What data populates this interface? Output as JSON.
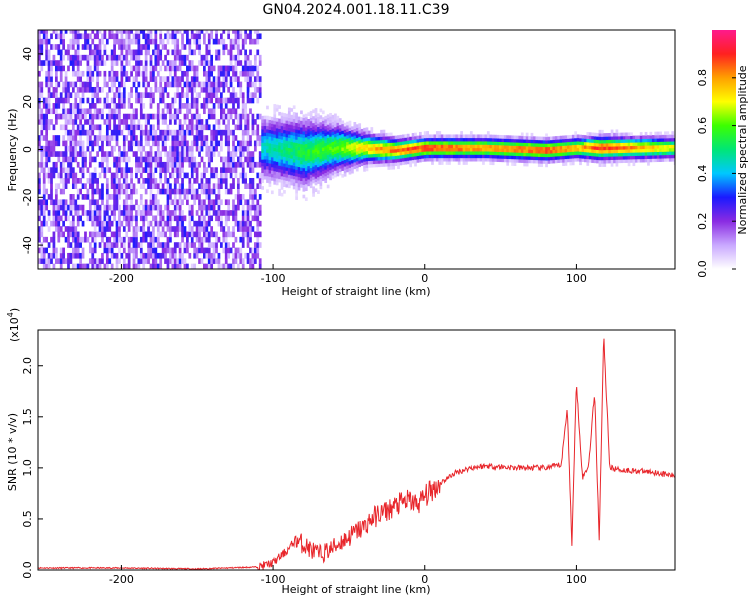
{
  "title": "GN04.2024.001.18.11.C39",
  "chart_data": [
    {
      "type": "heatmap",
      "xlabel": "Height of straight line (km)",
      "ylabel": "Frequency (Hz)",
      "xlim": [
        -255,
        165
      ],
      "ylim": [
        -50,
        50
      ],
      "xticks": [
        -200,
        -100,
        0,
        100
      ],
      "xtick_labels": [
        "-200",
        "-100",
        "0",
        "100"
      ],
      "yticks": [
        -40,
        -20,
        0,
        20,
        40
      ],
      "ytick_labels": [
        "-40",
        "-20",
        "0",
        "20",
        "40"
      ],
      "colorbar": {
        "label": "Normalized spectral amplitude",
        "range": [
          0,
          1
        ],
        "ticks": [
          0.0,
          0.2,
          0.4,
          0.6,
          0.8
        ],
        "tick_labels": [
          "0.0",
          "0.2",
          "0.4",
          "0.6",
          "0.8"
        ],
        "colors": [
          "#ffffff",
          "#c9a8ff",
          "#8a2be2",
          "#1a1aff",
          "#00c8ff",
          "#00e676",
          "#3cff00",
          "#ffff00",
          "#ffa000",
          "#ff2020",
          "#ff1a8c"
        ]
      },
      "noise_region": {
        "x": [
          -255,
          -108
        ],
        "amplitude": [
          0.05,
          0.3
        ]
      },
      "signal_band": [
        {
          "x": -105,
          "center": 0,
          "width": 10,
          "peak": 0.45
        },
        {
          "x": -80,
          "center": -2,
          "width": 11,
          "peak": 0.55
        },
        {
          "x": -60,
          "center": 0,
          "width": 8,
          "peak": 0.6
        },
        {
          "x": -40,
          "center": 0,
          "width": 5,
          "peak": 0.75
        },
        {
          "x": -20,
          "center": -1,
          "width": 4,
          "peak": 0.85
        },
        {
          "x": 0,
          "center": 0,
          "width": 3.5,
          "peak": 0.9
        },
        {
          "x": 40,
          "center": 0,
          "width": 3.5,
          "peak": 0.82
        },
        {
          "x": 80,
          "center": -1,
          "width": 3.5,
          "peak": 0.88
        },
        {
          "x": 100,
          "center": 0,
          "width": 3.5,
          "peak": 0.78
        },
        {
          "x": 115,
          "center": 0,
          "width": 4,
          "peak": 0.9
        },
        {
          "x": 165,
          "center": 0,
          "width": 3.5,
          "peak": 0.7
        }
      ]
    },
    {
      "type": "line",
      "xlabel": "Height of straight line (km)",
      "ylabel": "SNR (10 * v/v)",
      "scale_note": "(x10",
      "scale_exp": "4",
      "scale_close": ")",
      "xlim": [
        -255,
        165
      ],
      "ylim": [
        0,
        2.35
      ],
      "xticks": [
        -200,
        -100,
        0,
        100
      ],
      "xtick_labels": [
        "-200",
        "-100",
        "0",
        "100"
      ],
      "yticks": [
        0.0,
        0.5,
        1.0,
        1.5,
        2.0
      ],
      "ytick_labels": [
        "0.0",
        "0.5",
        "1.0",
        "1.5",
        "2.0"
      ],
      "color": "#e8262b",
      "series": [
        {
          "x": [
            -255,
            -200,
            -150,
            -110,
            -100,
            -90,
            -85,
            -80,
            -75,
            -70,
            -65,
            -60,
            -55,
            -50,
            -45,
            -40,
            -35,
            -30,
            -25,
            -20,
            -15,
            -10,
            -5,
            0,
            10,
            20,
            30,
            40,
            60,
            80,
            90,
            94,
            97,
            100,
            104,
            108,
            112,
            115,
            118,
            122,
            130,
            150,
            165
          ],
          "y": [
            0.02,
            0.02,
            0.01,
            0.03,
            0.07,
            0.2,
            0.3,
            0.25,
            0.2,
            0.15,
            0.18,
            0.22,
            0.28,
            0.32,
            0.38,
            0.42,
            0.5,
            0.55,
            0.58,
            0.62,
            0.66,
            0.68,
            0.64,
            0.72,
            0.85,
            0.95,
            1.0,
            1.02,
            1.0,
            1.0,
            1.03,
            1.6,
            0.25,
            1.85,
            0.9,
            1.02,
            1.75,
            0.3,
            2.3,
            1.0,
            0.98,
            0.96,
            0.92
          ]
        }
      ]
    }
  ]
}
